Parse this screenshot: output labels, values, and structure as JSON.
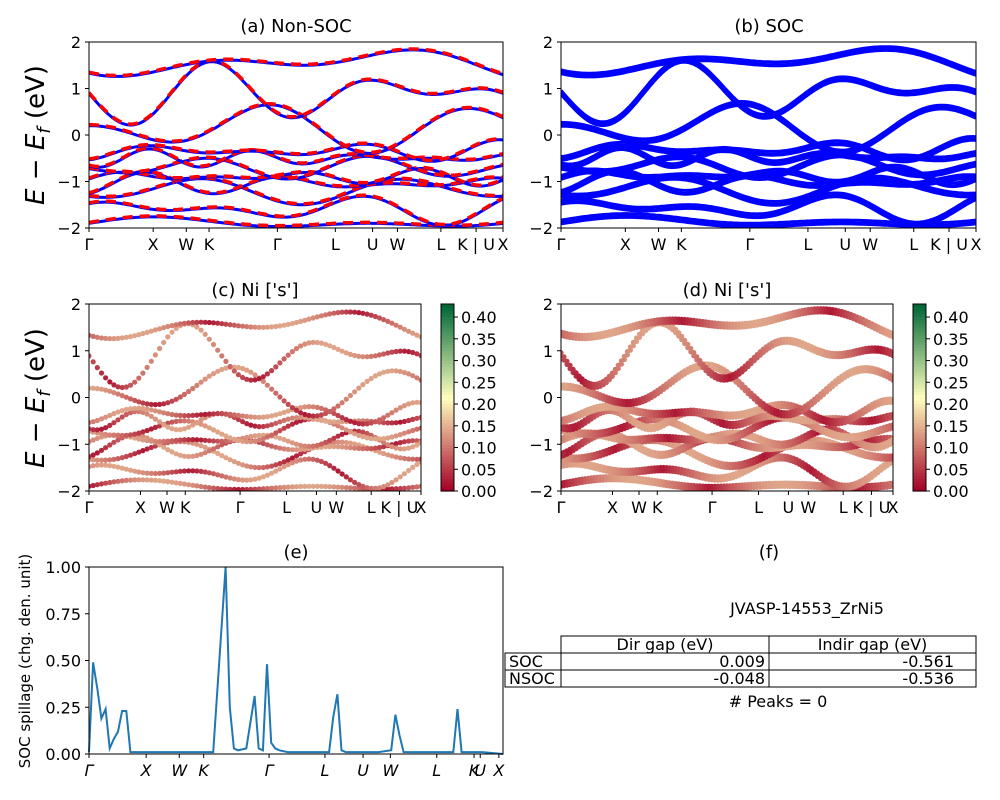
{
  "figure_label": "JVASP-14553_ZrNi5",
  "panels": {
    "a": {
      "title": "(a) Non-SOC"
    },
    "b": {
      "title": "(b) SOC"
    },
    "c": {
      "title": "(c)  Ni ['s']"
    },
    "d": {
      "title": "(d) Ni ['s']"
    },
    "e": {
      "title": "(e)"
    },
    "f": {
      "title": "(f)"
    }
  },
  "ylabel_energy": "E − E_f (eV)",
  "ylabel_spillage": "SOC spillage (chg. den. unit)",
  "kpath_labels": [
    "Γ",
    "X",
    "W",
    "K",
    "Γ",
    "L",
    "U",
    "W",
    "L",
    "K | U",
    "X"
  ],
  "spillage_labels": [
    "Γ",
    "X",
    "W",
    "K",
    "Γ",
    "L",
    "U",
    "W",
    "L",
    "K",
    "U",
    "X"
  ],
  "colorbar_ticks": [
    "0.00",
    "0.05",
    "0.10",
    "0.15",
    "0.20",
    "0.25",
    "0.30",
    "0.35",
    "0.40"
  ],
  "colors": {
    "nonsoc": "#ff0000",
    "soc": "#0000ff",
    "spillage": "#1f77b4",
    "proj_low": "#a50026",
    "proj_mid": "#ffffbf",
    "proj_high": "#006837"
  },
  "table": {
    "headers": [
      "",
      "Dir gap (eV)",
      "Indir gap (eV)"
    ],
    "rows": [
      {
        "label": "SOC",
        "dir": "0.009",
        "indir": "-0.561"
      },
      {
        "label": "NSOC",
        "dir": "-0.048",
        "indir": "-0.536"
      }
    ]
  },
  "peaks_text": "# Peaks = 0",
  "chart_data": [
    {
      "type": "line",
      "title": "(a) Non-SOC",
      "ylim": [
        -2,
        2
      ],
      "yticks": [
        -2,
        -1,
        0,
        1,
        2
      ],
      "series": []
    },
    {
      "type": "line",
      "title": "(b) SOC",
      "ylim": [
        -2,
        2
      ],
      "yticks": [
        -2,
        -1,
        0,
        1,
        2
      ],
      "series": []
    },
    {
      "type": "scatter",
      "title": "(c)  Ni ['s']",
      "ylim": [
        -2,
        2
      ],
      "clim": [
        0,
        0.43
      ]
    },
    {
      "type": "scatter",
      "title": "(d) Ni ['s']",
      "ylim": [
        -2,
        2
      ],
      "clim": [
        0,
        0.43
      ]
    },
    {
      "type": "line",
      "title": "(e)",
      "ylim": [
        0,
        1.0
      ],
      "yticks": [
        0.0,
        0.25,
        0.5,
        0.75,
        1.0
      ],
      "ylabel": "SOC spillage (chg. den. unit)",
      "x": [
        0,
        0.01,
        0.02,
        0.03,
        0.04,
        0.05,
        0.06,
        0.07,
        0.08,
        0.09,
        0.1,
        0.11,
        0.12,
        0.13,
        0.14,
        0.15,
        0.2,
        0.3,
        0.33,
        0.34,
        0.35,
        0.36,
        0.38,
        0.4,
        0.41,
        0.42,
        0.43,
        0.44,
        0.45,
        0.46,
        0.48,
        0.58,
        0.59,
        0.6,
        0.61,
        0.62,
        0.66,
        0.7,
        0.73,
        0.74,
        0.75,
        0.76,
        0.77,
        0.85,
        0.88,
        0.89,
        0.9,
        0.95,
        1.0
      ],
      "values": [
        0.01,
        0.49,
        0.35,
        0.19,
        0.24,
        0.03,
        0.08,
        0.12,
        0.23,
        0.23,
        0.01,
        0.01,
        0.01,
        0.01,
        0.01,
        0.01,
        0.01,
        0.01,
        1.0,
        0.25,
        0.03,
        0.02,
        0.03,
        0.31,
        0.03,
        0.02,
        0.48,
        0.06,
        0.03,
        0.02,
        0.01,
        0.01,
        0.2,
        0.32,
        0.02,
        0.01,
        0.01,
        0.01,
        0.02,
        0.21,
        0.1,
        0.01,
        0.01,
        0.01,
        0.01,
        0.24,
        0.01,
        0.01,
        0.0
      ]
    }
  ]
}
